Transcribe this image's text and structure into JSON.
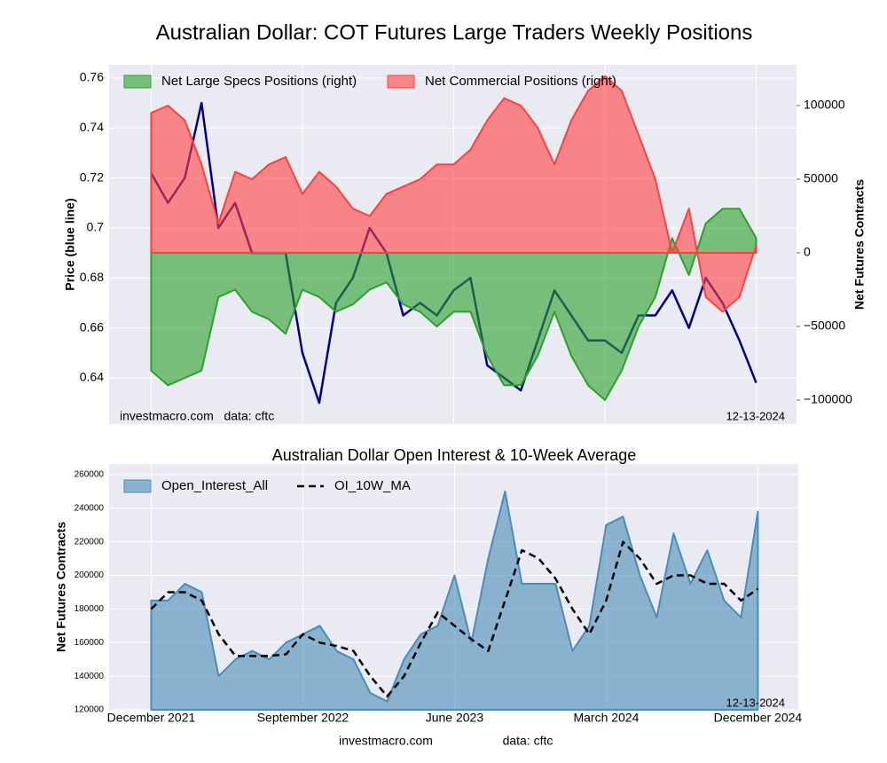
{
  "chart_data": [
    {
      "type": "area-line",
      "title": "Australian Dollar: COT Futures Large Traders Weekly Positions",
      "ylabel": "Price (blue line)",
      "y2label": "Net Futures Contracts",
      "ylim": [
        0.6215,
        0.7653
      ],
      "yticks": [
        0.64,
        0.66,
        0.68,
        0.7,
        0.72,
        0.74,
        0.76
      ],
      "y2lim": [
        -116300,
        127700
      ],
      "y2ticks": [
        {
          "value": -100000,
          "label": "−100000"
        },
        {
          "value": -50000,
          "label": "−50000"
        },
        0,
        50000,
        100000
      ],
      "grid": true,
      "legend": "upper left",
      "annotations": [
        "investmacro.com   data: cftc",
        "12-13-2024"
      ],
      "series": [
        {
          "style": "line",
          "color": "#00008b",
          "values": [
            0.722,
            0.71,
            0.72,
            0.75,
            0.7,
            0.71,
            0.69,
            0.69,
            0.69,
            0.65,
            0.63,
            0.67,
            0.68,
            0.7,
            0.69,
            0.665,
            0.67,
            0.665,
            0.675,
            0.68,
            0.645,
            0.64,
            0.635,
            0.655,
            0.675,
            0.665,
            0.655,
            0.655,
            0.65,
            0.665,
            0.665,
            0.675,
            0.66,
            0.68,
            0.67,
            0.655,
            0.638
          ]
        },
        {
          "name": "Net Large Specs Positions (right)",
          "style": "area",
          "axis": "y2",
          "color": "#2ca02c",
          "values": [
            -80000,
            -90000,
            -85000,
            -80000,
            -30000,
            -25000,
            -40000,
            -45000,
            -55000,
            -25000,
            -30000,
            -40000,
            -35000,
            -25000,
            -20000,
            -35000,
            -40000,
            -50000,
            -40000,
            -40000,
            -70000,
            -90000,
            -90000,
            -70000,
            -40000,
            -70000,
            -90000,
            -100000,
            -80000,
            -50000,
            -30000,
            10000,
            -15000,
            20000,
            30000,
            30000,
            10000
          ]
        },
        {
          "name": "Net Commercial Positions (right)",
          "style": "area",
          "axis": "y2",
          "color": "#ff4040",
          "values": [
            95000,
            100000,
            90000,
            60000,
            20000,
            55000,
            50000,
            60000,
            65000,
            40000,
            55000,
            45000,
            30000,
            25000,
            40000,
            45000,
            50000,
            60000,
            60000,
            70000,
            90000,
            105000,
            100000,
            85000,
            60000,
            90000,
            110000,
            120000,
            110000,
            80000,
            50000,
            0,
            30000,
            -30000,
            -40000,
            -30000,
            5000
          ]
        }
      ]
    },
    {
      "type": "area-line",
      "title": "Australian Dollar Open Interest & 10-Week Average",
      "ylabel": "Net Futures Contracts",
      "categories": [
        "December 2021",
        null,
        null,
        null,
        null,
        null,
        null,
        null,
        null,
        "September 2022",
        null,
        null,
        null,
        null,
        null,
        null,
        null,
        null,
        "June 2023",
        null,
        null,
        null,
        null,
        null,
        null,
        null,
        null,
        "March 2024",
        null,
        null,
        null,
        null,
        null,
        null,
        null,
        null,
        "December 2024"
      ],
      "ylim": [
        120000,
        266300
      ],
      "yticks": [
        120000,
        140000,
        160000,
        180000,
        200000,
        220000,
        240000,
        260000
      ],
      "grid": true,
      "legend": "upper left",
      "annotations": [
        "12-13-2024"
      ],
      "series": [
        {
          "name": "Open_Interest_All",
          "style": "area",
          "color": "#4a8cb8",
          "values": [
            185000,
            185000,
            195000,
            190000,
            140000,
            150000,
            155000,
            150000,
            160000,
            165000,
            170000,
            155000,
            150000,
            130000,
            125000,
            150000,
            165000,
            170000,
            200000,
            160000,
            210000,
            250000,
            195000,
            195000,
            195000,
            155000,
            170000,
            230000,
            235000,
            200000,
            175000,
            225000,
            195000,
            215000,
            185000,
            175000,
            238000
          ]
        },
        {
          "name": "OI_10W_MA",
          "style": "line",
          "dash": true,
          "color": "#000000",
          "values": [
            180000,
            190000,
            190000,
            185000,
            165000,
            152000,
            152000,
            152000,
            153000,
            165000,
            160000,
            158000,
            155000,
            140000,
            128000,
            140000,
            160000,
            178000,
            170000,
            162000,
            155000,
            185000,
            215000,
            210000,
            198000,
            180000,
            165000,
            185000,
            220000,
            210000,
            195000,
            200000,
            200000,
            195000,
            195000,
            185000,
            192000
          ]
        }
      ]
    }
  ],
  "footer": [
    "investmacro.com",
    "data: cftc"
  ]
}
